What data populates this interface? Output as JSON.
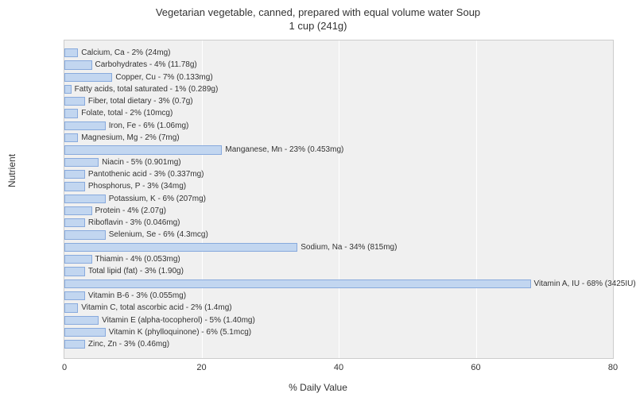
{
  "title_line1": "Vegetarian vegetable, canned, prepared with equal volume water Soup",
  "title_line2": "1 cup (241g)",
  "ylabel": "Nutrient",
  "xlabel": "% Daily Value",
  "chart": {
    "type": "bar",
    "orientation": "horizontal",
    "xlim": [
      0,
      80
    ],
    "xtick_step": 20,
    "xticks": [
      0,
      20,
      40,
      60,
      80
    ],
    "bar_color": "#c2d6f0",
    "bar_border_color": "#88aadd",
    "plot_background": "#f0f0f0",
    "grid_color": "#ffffff",
    "title_fontsize": 13,
    "label_fontsize": 12,
    "bar_label_fontsize": 10,
    "tick_fontsize": 11,
    "title_color": "#333333",
    "text_color": "#333333"
  },
  "nutrients": [
    {
      "label": "Calcium, Ca - 2% (24mg)",
      "value": 2
    },
    {
      "label": "Carbohydrates - 4% (11.78g)",
      "value": 4
    },
    {
      "label": "Copper, Cu - 7% (0.133mg)",
      "value": 7
    },
    {
      "label": "Fatty acids, total saturated - 1% (0.289g)",
      "value": 1
    },
    {
      "label": "Fiber, total dietary - 3% (0.7g)",
      "value": 3
    },
    {
      "label": "Folate, total - 2% (10mcg)",
      "value": 2
    },
    {
      "label": "Iron, Fe - 6% (1.06mg)",
      "value": 6
    },
    {
      "label": "Magnesium, Mg - 2% (7mg)",
      "value": 2
    },
    {
      "label": "Manganese, Mn - 23% (0.453mg)",
      "value": 23
    },
    {
      "label": "Niacin - 5% (0.901mg)",
      "value": 5
    },
    {
      "label": "Pantothenic acid - 3% (0.337mg)",
      "value": 3
    },
    {
      "label": "Phosphorus, P - 3% (34mg)",
      "value": 3
    },
    {
      "label": "Potassium, K - 6% (207mg)",
      "value": 6
    },
    {
      "label": "Protein - 4% (2.07g)",
      "value": 4
    },
    {
      "label": "Riboflavin - 3% (0.046mg)",
      "value": 3
    },
    {
      "label": "Selenium, Se - 6% (4.3mcg)",
      "value": 6
    },
    {
      "label": "Sodium, Na - 34% (815mg)",
      "value": 34
    },
    {
      "label": "Thiamin - 4% (0.053mg)",
      "value": 4
    },
    {
      "label": "Total lipid (fat) - 3% (1.90g)",
      "value": 3
    },
    {
      "label": "Vitamin A, IU - 68% (3425IU)",
      "value": 68
    },
    {
      "label": "Vitamin B-6 - 3% (0.055mg)",
      "value": 3
    },
    {
      "label": "Vitamin C, total ascorbic acid - 2% (1.4mg)",
      "value": 2
    },
    {
      "label": "Vitamin E (alpha-tocopherol) - 5% (1.40mg)",
      "value": 5
    },
    {
      "label": "Vitamin K (phylloquinone) - 6% (5.1mcg)",
      "value": 6
    },
    {
      "label": "Zinc, Zn - 3% (0.46mg)",
      "value": 3
    }
  ]
}
